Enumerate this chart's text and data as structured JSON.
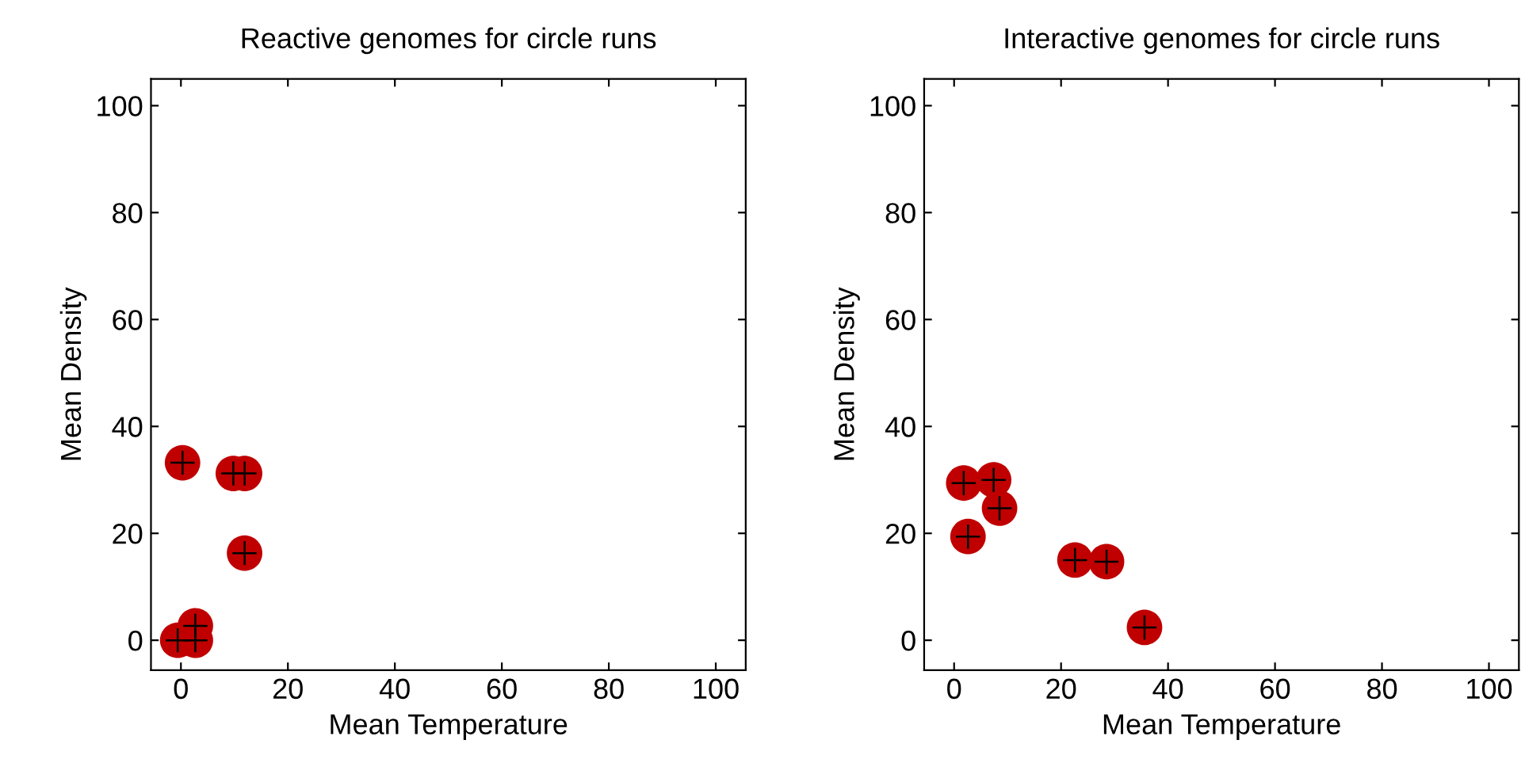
{
  "chart_data": [
    {
      "type": "scatter",
      "title": "Reactive genomes for circle runs",
      "xlabel": "Mean Temperature",
      "ylabel": "Mean Density",
      "xlim": [
        -5.6,
        105.6
      ],
      "ylim": [
        -5.6,
        105
      ],
      "xticks": [
        0,
        20,
        40,
        60,
        80,
        100
      ],
      "yticks": [
        0,
        20,
        40,
        60,
        80,
        100
      ],
      "grid": false,
      "marker": "circle",
      "series": [
        {
          "color": "#c00000",
          "x": [
            0.3,
            9.8,
            11.9,
            11.9,
            2.7,
            -0.6,
            2.7
          ],
          "values": [
            33.2,
            31.2,
            31.2,
            16.3,
            2.7,
            0,
            0
          ]
        }
      ]
    },
    {
      "type": "scatter",
      "title": "Interactive genomes for circle runs",
      "xlabel": "Mean Temperature",
      "ylabel": "Mean Density",
      "xlim": [
        -5.6,
        105.6
      ],
      "ylim": [
        -5.6,
        105
      ],
      "xticks": [
        0,
        20,
        40,
        60,
        80,
        100
      ],
      "yticks": [
        0,
        20,
        40,
        60,
        80,
        100
      ],
      "grid": false,
      "marker": "circle",
      "series": [
        {
          "color": "#c00000",
          "x": [
            1.8,
            7.4,
            8.5,
            2.6,
            22.6,
            28.5,
            35.6
          ],
          "values": [
            29.4,
            30,
            24.7,
            19.4,
            15,
            14.7,
            2.4
          ]
        }
      ]
    }
  ]
}
